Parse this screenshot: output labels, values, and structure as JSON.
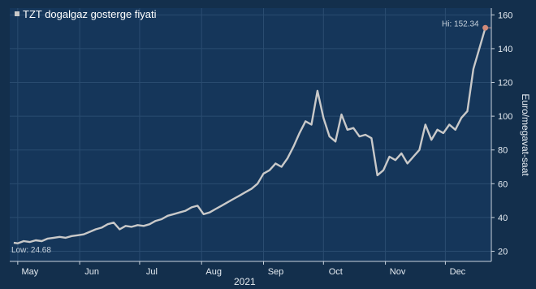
{
  "chart_data": {
    "type": "line",
    "title": "",
    "xlabel": "2021",
    "ylabel": "Euro/megavat-saat",
    "legend_position": "top-left",
    "grid": true,
    "x_ticks": [
      "May",
      "Jun",
      "Jul",
      "Aug",
      "Sep",
      "Oct",
      "Nov",
      "Dec"
    ],
    "x_year_label": "2021",
    "ylim": [
      14,
      164
    ],
    "yticks": [
      20,
      40,
      60,
      80,
      100,
      120,
      140,
      160
    ],
    "colors": {
      "background": "#132f4c",
      "plot_background": "#15365a",
      "grid": "#2a4c70",
      "line": "#c9c9c9",
      "hi_marker": "#d08a7a"
    },
    "annotations": {
      "hi_label": "Hi: 152.34",
      "low_label": "Low: 24.68"
    },
    "series": [
      {
        "name": "TZT dogalgaz gosterge fiyati",
        "x": [
          "2021-04-29",
          "2021-05-01",
          "2021-05-04",
          "2021-05-07",
          "2021-05-10",
          "2021-05-13",
          "2021-05-16",
          "2021-05-19",
          "2021-05-22",
          "2021-05-25",
          "2021-05-28",
          "2021-05-31",
          "2021-06-03",
          "2021-06-06",
          "2021-06-09",
          "2021-06-12",
          "2021-06-15",
          "2021-06-18",
          "2021-06-21",
          "2021-06-24",
          "2021-06-27",
          "2021-06-30",
          "2021-07-03",
          "2021-07-06",
          "2021-07-09",
          "2021-07-12",
          "2021-07-15",
          "2021-07-18",
          "2021-07-21",
          "2021-07-24",
          "2021-07-27",
          "2021-07-30",
          "2021-08-02",
          "2021-08-05",
          "2021-08-08",
          "2021-08-11",
          "2021-08-14",
          "2021-08-17",
          "2021-08-20",
          "2021-08-23",
          "2021-08-26",
          "2021-08-29",
          "2021-09-01",
          "2021-09-04",
          "2021-09-07",
          "2021-09-10",
          "2021-09-13",
          "2021-09-16",
          "2021-09-19",
          "2021-09-22",
          "2021-09-25",
          "2021-09-28",
          "2021-10-01",
          "2021-10-04",
          "2021-10-07",
          "2021-10-10",
          "2021-10-13",
          "2021-10-16",
          "2021-10-19",
          "2021-10-22",
          "2021-10-25",
          "2021-10-28",
          "2021-10-31",
          "2021-11-03",
          "2021-11-06",
          "2021-11-09",
          "2021-11-12",
          "2021-11-15",
          "2021-11-18",
          "2021-11-21",
          "2021-11-24",
          "2021-11-27",
          "2021-11-30",
          "2021-12-03",
          "2021-12-06",
          "2021-12-09",
          "2021-12-12",
          "2021-12-15",
          "2021-12-18",
          "2021-12-21"
        ],
        "y": [
          25,
          24.7,
          26,
          25.5,
          26.5,
          26,
          27.5,
          28,
          28.5,
          28,
          29,
          29.5,
          30,
          31.5,
          33,
          34,
          36,
          37,
          33,
          35,
          34.5,
          35.5,
          35,
          36,
          38,
          39,
          41,
          42,
          43,
          44,
          46,
          47,
          42,
          43,
          45,
          47,
          49,
          51,
          53,
          55,
          57,
          60,
          66,
          68,
          72,
          70,
          75,
          82,
          90,
          97,
          95,
          115,
          99,
          88,
          85,
          101,
          92,
          93,
          88,
          89,
          87,
          65,
          68,
          76,
          74,
          78,
          72,
          76,
          80,
          95,
          86,
          92,
          90,
          95,
          92,
          99,
          103,
          128,
          140,
          152.34
        ]
      }
    ]
  }
}
